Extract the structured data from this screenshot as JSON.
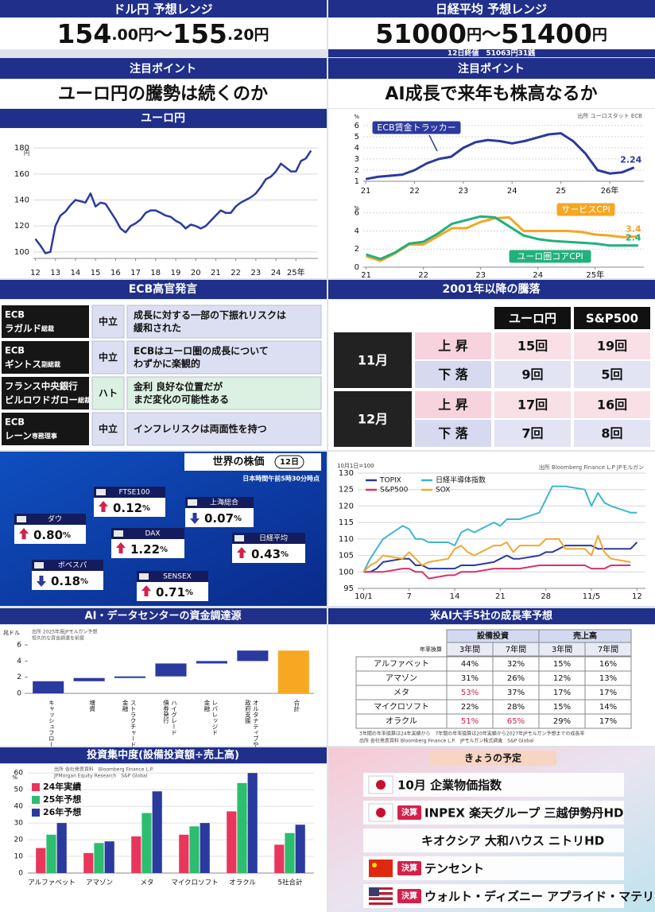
{
  "header_left": {
    "label": "ドル円 予想レンジ",
    "low": "154",
    "low_decimal": ".00円",
    "separator": "～",
    "high": "155",
    "high_decimal": ".20円"
  },
  "header_right": {
    "label": "日経平均 予想レンジ",
    "low": "51000",
    "low_decimal": "円",
    "separator": "～",
    "high": "51400",
    "high_decimal": "円",
    "close": "12日終値　51063円31銭"
  },
  "focus_left": {
    "label": "注目ポイント",
    "text": "ユーロ円の騰勢は続くのか"
  },
  "focus_right": {
    "label": "注目ポイント",
    "text": "AI成長で来年も株高なるか"
  },
  "ecb": {
    "title": "ECB高官発言",
    "rows": [
      {
        "org": "ECB",
        "person": "ラガルド",
        "role": "総裁",
        "stance": "中立",
        "color": "#dcdff2",
        "comment": [
          "成長に対する一部の下振れリスクは",
          "緩和された"
        ]
      },
      {
        "org": "ECB",
        "person": "ギントス",
        "role": "副総裁",
        "stance": "中立",
        "color": "#dcdff2",
        "comment": [
          "ECBはユーロ圏の成長について",
          "わずかに楽観的"
        ]
      },
      {
        "org": "フランス中央銀行",
        "person": "ビルロワドガロー",
        "role": "総裁",
        "stance": "ハト",
        "color": "#dcf1e2",
        "comment": [
          "金利 良好な位置だが",
          "まだ変化の可能性ある"
        ]
      },
      {
        "org": "ECB",
        "person": "レーン",
        "role": "専務理事",
        "stance": "中立",
        "color": "#dcdff2",
        "comment": [
          "インフレリスクは両面性を持つ"
        ]
      }
    ]
  },
  "moves": {
    "title": "2001年以降の騰落",
    "headers": [
      "ユーロ円",
      "S&P500"
    ],
    "months": [
      {
        "month": "11月",
        "rows": [
          {
            "kind": "上 昇",
            "color": "#f7d3dd",
            "cells": [
              "15回",
              "19回"
            ]
          },
          {
            "kind": "下 落",
            "color": "#d6d9ef",
            "cells": [
              "9回",
              "5回"
            ]
          }
        ]
      },
      {
        "month": "12月",
        "rows": [
          {
            "kind": "上 昇",
            "color": "#f7d3dd",
            "cells": [
              "17回",
              "16回"
            ]
          },
          {
            "kind": "下 落",
            "color": "#d6d9ef",
            "cells": [
              "7回",
              "8回"
            ]
          }
        ]
      }
    ]
  },
  "world": {
    "title": "世界の株価",
    "badge": "12日",
    "note": "日本時間午前5時30分時点",
    "items": [
      {
        "name": "FTSE100",
        "value": "0.12",
        "unit": "%",
        "direction": "up"
      },
      {
        "name": "上海総合",
        "value": "0.07",
        "unit": "%",
        "direction": "down"
      },
      {
        "name": "ダウ",
        "value": "0.80",
        "unit": "%",
        "direction": "up"
      },
      {
        "name": "DAX",
        "value": "1.22",
        "unit": "%",
        "direction": "up"
      },
      {
        "name": "日経平均",
        "value": "0.43",
        "unit": "%",
        "direction": "up"
      },
      {
        "name": "ボベスパ",
        "value": "0.18",
        "unit": "%",
        "direction": "down"
      },
      {
        "name": "SENSEX",
        "value": "0.71",
        "unit": "%",
        "direction": "up"
      }
    ]
  },
  "growth": {
    "title": "米AI大手5社の成長率予想",
    "groups": [
      "設備投資",
      "売上高"
    ],
    "periods": [
      "3年間",
      "7年間",
      "3年間",
      "7年間"
    ],
    "row_header": "年率換算",
    "rows": [
      {
        "name": "アルファベット",
        "cells": [
          "44%",
          "32%",
          "15%",
          "16%"
        ]
      },
      {
        "name": "アマゾン",
        "cells": [
          "31%",
          "26%",
          "12%",
          "13%"
        ]
      },
      {
        "name": "メタ",
        "cells": [
          "53%",
          "37%",
          "17%",
          "17%"
        ]
      },
      {
        "name": "マイクロソフト",
        "cells": [
          "22%",
          "28%",
          "15%",
          "14%"
        ]
      },
      {
        "name": "オラクル",
        "cells": [
          "51%",
          "65%",
          "29%",
          "17%"
        ]
      }
    ],
    "highlight": [
      [
        2,
        0
      ],
      [
        4,
        0
      ],
      [
        4,
        1
      ]
    ],
    "highlight_color": "#d6204b",
    "notes": [
      "3年間の年率換算は24年実績から　7年間の年率換算は20年実績から2027年JPモルガン予想までの成長率",
      "出所 会社発表資料 Bloomberg Finance L.P.　JPモルガン株式調査　S&P Global"
    ]
  },
  "schedule": {
    "title": "きょうの予定",
    "items": [
      {
        "flag": "jp",
        "text": "10月 企業物価指数"
      },
      {
        "flag": "jp",
        "tag": "決算",
        "text": "INPEX 楽天グループ 三越伊勢丹HD"
      },
      {
        "text": "キオクシア 大和ハウス ニトリHD"
      },
      {
        "flag": "cn",
        "tag": "決算",
        "text": "テンセント"
      },
      {
        "flag": "us",
        "tag": "決算",
        "text": "ウォルト・ディズニー アプライド・マテリアルズ"
      }
    ]
  },
  "chart_data": [
    {
      "type": "line",
      "title": "ユーロ円",
      "color": "#2b3a9e",
      "grid": true,
      "y_unit": "円",
      "x": [
        2012,
        2012.25,
        2012.5,
        2012.75,
        2013,
        2013.25,
        2013.5,
        2013.75,
        2014,
        2014.25,
        2014.5,
        2014.75,
        2015,
        2015.25,
        2015.5,
        2015.75,
        2016,
        2016.25,
        2016.5,
        2016.75,
        2017,
        2017.25,
        2017.5,
        2017.75,
        2018,
        2018.25,
        2018.5,
        2018.75,
        2019,
        2019.25,
        2019.5,
        2019.75,
        2020,
        2020.25,
        2020.5,
        2020.75,
        2021,
        2021.25,
        2021.5,
        2021.75,
        2022,
        2022.25,
        2022.5,
        2022.75,
        2023,
        2023.25,
        2023.5,
        2023.75,
        2024,
        2024.25,
        2024.5,
        2024.75,
        2025,
        2025.25,
        2025.5,
        2025.75
      ],
      "values": [
        110,
        105,
        99,
        100,
        120,
        128,
        131,
        136,
        140,
        139,
        138,
        145,
        135,
        138,
        137,
        131,
        125,
        118,
        115,
        120,
        122,
        125,
        130,
        132,
        132,
        130,
        128,
        127,
        124,
        122,
        118,
        121,
        120,
        118,
        120,
        124,
        128,
        132,
        130,
        130,
        135,
        138,
        140,
        142,
        145,
        150,
        156,
        158,
        162,
        168,
        165,
        162,
        162,
        170,
        172,
        178
      ],
      "xlim": [
        2011.9,
        2026.1
      ],
      "xticks": [
        {
          "value": 2012,
          "label": "12"
        },
        {
          "value": 2013,
          "label": "13"
        },
        {
          "value": 2014,
          "label": "14"
        },
        {
          "value": 2015,
          "label": "15"
        },
        {
          "value": 2016,
          "label": "16"
        },
        {
          "value": 2017,
          "label": "17"
        },
        {
          "value": 2018,
          "label": "18"
        },
        {
          "value": 2019,
          "label": "19"
        },
        {
          "value": 2020,
          "label": "20"
        },
        {
          "value": 2021,
          "label": "21"
        },
        {
          "value": 2022,
          "label": "22"
        },
        {
          "value": 2023,
          "label": "23"
        },
        {
          "value": 2024,
          "label": "24"
        },
        {
          "value": 2025,
          "label": "25年"
        }
      ],
      "ylim": [
        95,
        185
      ],
      "yticks": [
        100,
        120,
        140,
        160,
        180
      ]
    },
    {
      "type": "line",
      "source": "出所 ユーロスタット ECB",
      "grid": true,
      "y_unit": "%",
      "x": [
        2021,
        2021.25,
        2021.5,
        2021.75,
        2022,
        2022.25,
        2022.5,
        2022.75,
        2023,
        2023.25,
        2023.5,
        2023.75,
        2024,
        2024.25,
        2024.5,
        2024.75,
        2025,
        2025.25,
        2025.5,
        2025.75,
        2026,
        2026.25,
        2026.5
      ],
      "series": [
        {
          "name": "ECB賃金トラッカー",
          "color": "#2b3a9e",
          "end_label": "2.24",
          "values": [
            1.2,
            1.4,
            1.5,
            1.6,
            2.0,
            2.6,
            3.0,
            3.2,
            4.0,
            4.5,
            4.7,
            4.6,
            4.4,
            4.6,
            4.9,
            5.2,
            5.3,
            4.6,
            3.5,
            2.0,
            1.7,
            1.8,
            2.24
          ]
        }
      ],
      "xlim": [
        2020.95,
        2026.7
      ],
      "xticks": [
        {
          "value": 2021,
          "label": "21"
        },
        {
          "value": 2022,
          "label": "22"
        },
        {
          "value": 2023,
          "label": "23"
        },
        {
          "value": 2024,
          "label": "24"
        },
        {
          "value": 2025,
          "label": "25"
        },
        {
          "value": 2026,
          "label": "26年"
        }
      ],
      "ylim": [
        1,
        6.2
      ],
      "yticks": [
        1,
        2,
        3,
        4,
        5,
        6
      ]
    },
    {
      "type": "line",
      "grid": true,
      "y_unit": "%",
      "x": [
        2021,
        2021.25,
        2021.5,
        2021.75,
        2022,
        2022.25,
        2022.5,
        2022.75,
        2023,
        2023.25,
        2023.5,
        2023.75,
        2024,
        2024.25,
        2024.5,
        2024.75,
        2025,
        2025.25,
        2025.5,
        2025.75
      ],
      "series": [
        {
          "name": "サービスCPI",
          "color": "#f5a623",
          "end_label": "3.4",
          "values": [
            1.2,
            0.7,
            1.5,
            2.5,
            2.5,
            3.4,
            4.3,
            4.3,
            5.0,
            5.4,
            5.5,
            4.0,
            4.0,
            4.0,
            4.0,
            3.9,
            3.6,
            3.5,
            3.3,
            3.4
          ]
        },
        {
          "name": "ユーロ圏コアCPI",
          "color": "#22b07d",
          "end_label": "2.4",
          "values": [
            1.4,
            0.9,
            1.6,
            2.6,
            2.8,
            3.7,
            4.8,
            5.2,
            5.6,
            5.5,
            4.5,
            3.5,
            3.1,
            2.9,
            2.8,
            2.7,
            2.6,
            2.4,
            2.4,
            2.4
          ]
        }
      ],
      "xlim": [
        2020.95,
        2025.85
      ],
      "xticks": [
        {
          "value": 2021,
          "label": "21"
        },
        {
          "value": 2022,
          "label": "22"
        },
        {
          "value": 2023,
          "label": "23"
        },
        {
          "value": 2024,
          "label": "24"
        },
        {
          "value": 2025,
          "label": "25年"
        }
      ],
      "ylim": [
        0,
        6.5
      ],
      "yticks": [
        0,
        2,
        4,
        6
      ]
    },
    {
      "type": "line",
      "note": "10月1日=100",
      "source": "出所 Bloomberg Finance L.P JPモルガン",
      "grid": true,
      "legend": "top-left",
      "x": [
        0,
        1,
        2,
        3,
        6,
        7,
        8,
        9,
        10,
        13,
        14,
        15,
        16,
        17,
        20,
        21,
        22,
        23,
        24,
        27,
        28,
        29,
        30,
        31,
        34,
        35,
        36,
        37,
        38,
        41,
        42
      ],
      "series": [
        {
          "name": "TOPIX",
          "color": "#2b3a9e",
          "values": [
            100,
            100,
            101,
            103,
            104,
            104,
            102,
            102,
            101,
            101,
            101,
            102,
            102,
            102,
            103,
            104,
            105,
            104,
            104,
            105,
            106,
            106,
            107,
            108,
            108,
            108,
            107,
            107,
            107,
            107,
            109
          ]
        },
        {
          "name": "日経半導体指数",
          "color": "#3fb6cf",
          "values": [
            100,
            104,
            107,
            110,
            114,
            113,
            110,
            110,
            109,
            109,
            108,
            112,
            113,
            112,
            115,
            114,
            116,
            116,
            116,
            118,
            122,
            126,
            126,
            126,
            125,
            120,
            124,
            121,
            120,
            118,
            118
          ]
        },
        {
          "name": "S&P500",
          "color": "#d6336c",
          "values": [
            100,
            100,
            100,
            100,
            101,
            101,
            100,
            100,
            98,
            99,
            99,
            100,
            100,
            100,
            101,
            101,
            101,
            101,
            101,
            102,
            102,
            102,
            102,
            102,
            102,
            101,
            101,
            101,
            102,
            102,
            null
          ]
        },
        {
          "name": "SOX",
          "color": "#f0a830",
          "values": [
            100,
            102,
            103,
            105,
            104,
            106,
            104,
            102,
            103,
            104,
            107,
            108,
            106,
            105,
            108,
            108,
            109,
            106,
            108,
            108,
            110,
            110,
            110,
            107,
            107,
            105,
            111,
            106,
            104,
            103,
            null
          ]
        }
      ],
      "xlim": [
        -0.9,
        43.3
      ],
      "xticks": [
        {
          "value": 0,
          "label": "10/1"
        },
        7,
        14,
        21,
        28,
        {
          "value": 35,
          "label": "11/5"
        },
        {
          "value": 42,
          "label": "12"
        }
      ],
      "ylim": [
        95,
        130
      ],
      "yticks": [
        95,
        100,
        105,
        110,
        115,
        120,
        125,
        130
      ]
    },
    {
      "type": "waterfall",
      "title": "AI・データセンターの資金調達源",
      "y_unit": "兆ドル",
      "note": [
        "出所 2025年度JPモルガン予想",
        "恒久的な資金調達を前提"
      ],
      "color": "#2b3a9e",
      "categories": [
        [
          "キャッシュフロー"
        ],
        [
          "増資"
        ],
        [
          "ストラクチャード",
          "金融"
        ],
        [
          "ハイグレード",
          "債券発行"
        ],
        [
          "レバレッジド",
          "金融"
        ],
        [
          "オルタナティブや",
          "政府支援"
        ]
      ],
      "values": [
        1.5,
        0.4,
        0.2,
        1.6,
        0.3,
        1.3
      ],
      "total": {
        "category": [
          "合計"
        ],
        "value": 5.3,
        "color": "#f7a823"
      },
      "ylim": [
        0,
        6.5
      ],
      "yticks": [
        0,
        2,
        4,
        6
      ]
    },
    {
      "type": "grouped_bar",
      "title": "投資集中度(設備投資額÷売上高)",
      "y_unit": "%",
      "source": [
        "出所 会社発表資料　Bloomberg Finance L.P.",
        "JPMorgan Equity Research　S&P Global"
      ],
      "categories": [
        "アルファベット",
        "アマゾン",
        "メタ",
        "マイクロソフト",
        "オラクル",
        "5社合計"
      ],
      "series": [
        {
          "name": "24年実績",
          "color": "#e8365d",
          "values": [
            15,
            12,
            22,
            23,
            37,
            17
          ]
        },
        {
          "name": "25年予想",
          "color": "#2dbd6e",
          "values": [
            23,
            18,
            36,
            28,
            54,
            24
          ]
        },
        {
          "name": "26年予想",
          "color": "#2b3a9e",
          "values": [
            30,
            19,
            49,
            30,
            60,
            29
          ]
        }
      ],
      "ylim": [
        0,
        62
      ],
      "yticks": [
        0,
        10,
        20,
        30,
        40,
        50,
        60
      ]
    }
  ]
}
